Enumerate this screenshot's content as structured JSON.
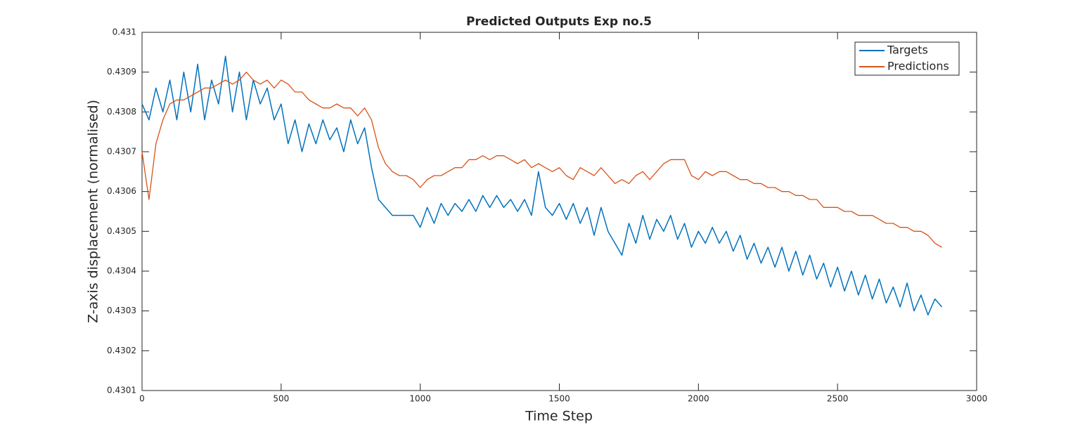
{
  "chart_data": {
    "type": "line",
    "title": "Predicted Outputs Exp no.5",
    "x_label": "Time Step",
    "y_label": "Z-axis displacement (normalised)",
    "x": [
      0,
      25,
      50,
      75,
      100,
      125,
      150,
      175,
      200,
      225,
      250,
      275,
      300,
      325,
      350,
      375,
      400,
      425,
      450,
      475,
      500,
      525,
      550,
      575,
      600,
      625,
      650,
      675,
      700,
      725,
      750,
      775,
      800,
      825,
      850,
      875,
      900,
      925,
      950,
      975,
      1000,
      1025,
      1050,
      1075,
      1100,
      1125,
      1150,
      1175,
      1200,
      1225,
      1250,
      1275,
      1300,
      1325,
      1350,
      1375,
      1400,
      1425,
      1450,
      1475,
      1500,
      1525,
      1550,
      1575,
      1600,
      1625,
      1650,
      1675,
      1700,
      1725,
      1750,
      1775,
      1800,
      1825,
      1850,
      1875,
      1900,
      1925,
      1950,
      1975,
      2000,
      2025,
      2050,
      2075,
      2100,
      2125,
      2150,
      2175,
      2200,
      2225,
      2250,
      2275,
      2300,
      2325,
      2350,
      2375,
      2400,
      2425,
      2450,
      2475,
      2500,
      2525,
      2550,
      2575,
      2600,
      2625,
      2650,
      2675,
      2700,
      2725,
      2750,
      2775,
      2800,
      2825,
      2850,
      2875
    ],
    "series": [
      {
        "name": "Targets",
        "color": "#0072bd",
        "values": [
          0.43082,
          0.43078,
          0.43086,
          0.4308,
          0.43088,
          0.43078,
          0.4309,
          0.4308,
          0.43092,
          0.43078,
          0.43088,
          0.43082,
          0.43094,
          0.4308,
          0.4309,
          0.43078,
          0.43088,
          0.43082,
          0.43086,
          0.43078,
          0.43082,
          0.43072,
          0.43078,
          0.4307,
          0.43077,
          0.43072,
          0.43078,
          0.43073,
          0.43076,
          0.4307,
          0.43078,
          0.43072,
          0.43076,
          0.43066,
          0.43058,
          0.43056,
          0.43054,
          0.43054,
          0.43054,
          0.43054,
          0.43051,
          0.43056,
          0.43052,
          0.43057,
          0.43054,
          0.43057,
          0.43055,
          0.43058,
          0.43055,
          0.43059,
          0.43056,
          0.43059,
          0.43056,
          0.43058,
          0.43055,
          0.43058,
          0.43054,
          0.43065,
          0.43056,
          0.43054,
          0.43057,
          0.43053,
          0.43057,
          0.43052,
          0.43056,
          0.43049,
          0.43056,
          0.4305,
          0.43047,
          0.43044,
          0.43052,
          0.43047,
          0.43054,
          0.43048,
          0.43053,
          0.4305,
          0.43054,
          0.43048,
          0.43052,
          0.43046,
          0.4305,
          0.43047,
          0.43051,
          0.43047,
          0.4305,
          0.43045,
          0.43049,
          0.43043,
          0.43047,
          0.43042,
          0.43046,
          0.43041,
          0.43046,
          0.4304,
          0.43045,
          0.43039,
          0.43044,
          0.43038,
          0.43042,
          0.43036,
          0.43041,
          0.43035,
          0.4304,
          0.43034,
          0.43039,
          0.43033,
          0.43038,
          0.43032,
          0.43036,
          0.43031,
          0.43037,
          0.4303,
          0.43034,
          0.43029,
          0.43033,
          0.43031
        ]
      },
      {
        "name": "Predictions",
        "color": "#d95319",
        "values": [
          0.4307,
          0.43058,
          0.43072,
          0.43078,
          0.43082,
          0.43083,
          0.43083,
          0.43084,
          0.43085,
          0.43086,
          0.43086,
          0.43087,
          0.43088,
          0.43087,
          0.43088,
          0.4309,
          0.43088,
          0.43087,
          0.43088,
          0.43086,
          0.43088,
          0.43087,
          0.43085,
          0.43085,
          0.43083,
          0.43082,
          0.43081,
          0.43081,
          0.43082,
          0.43081,
          0.43081,
          0.43079,
          0.43081,
          0.43078,
          0.43071,
          0.43067,
          0.43065,
          0.43064,
          0.43064,
          0.43063,
          0.43061,
          0.43063,
          0.43064,
          0.43064,
          0.43065,
          0.43066,
          0.43066,
          0.43068,
          0.43068,
          0.43069,
          0.43068,
          0.43069,
          0.43069,
          0.43068,
          0.43067,
          0.43068,
          0.43066,
          0.43067,
          0.43066,
          0.43065,
          0.43066,
          0.43064,
          0.43063,
          0.43066,
          0.43065,
          0.43064,
          0.43066,
          0.43064,
          0.43062,
          0.43063,
          0.43062,
          0.43064,
          0.43065,
          0.43063,
          0.43065,
          0.43067,
          0.43068,
          0.43068,
          0.43068,
          0.43064,
          0.43063,
          0.43065,
          0.43064,
          0.43065,
          0.43065,
          0.43064,
          0.43063,
          0.43063,
          0.43062,
          0.43062,
          0.43061,
          0.43061,
          0.4306,
          0.4306,
          0.43059,
          0.43059,
          0.43058,
          0.43058,
          0.43056,
          0.43056,
          0.43056,
          0.43055,
          0.43055,
          0.43054,
          0.43054,
          0.43054,
          0.43053,
          0.43052,
          0.43052,
          0.43051,
          0.43051,
          0.4305,
          0.4305,
          0.43049,
          0.43047,
          0.43046
        ]
      }
    ],
    "xlim": [
      0,
      3000
    ],
    "xticks": [
      0,
      500,
      1000,
      1500,
      2000,
      2500,
      3000
    ],
    "ylim": [
      0.4301,
      0.431
    ],
    "yticks": [
      0.4301,
      0.4302,
      0.4303,
      0.4304,
      0.4305,
      0.4306,
      0.4307,
      0.4308,
      0.4309,
      0.431
    ],
    "grid": false,
    "legend": "northeast"
  }
}
